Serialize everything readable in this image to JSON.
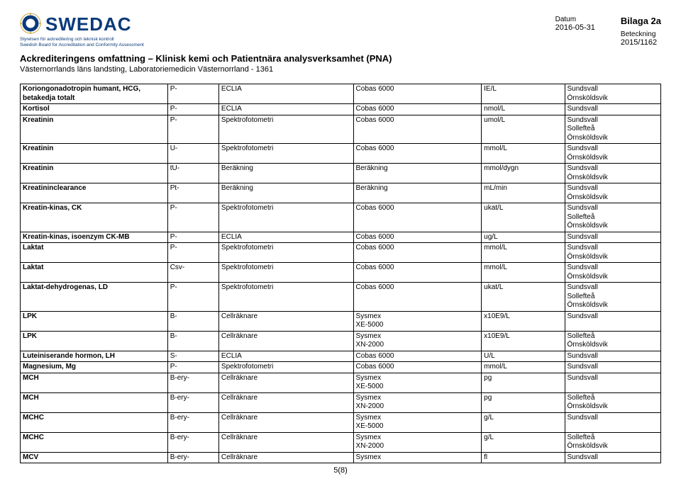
{
  "header": {
    "logo_text": "SWEDAC",
    "logo_tag1": "Styrelsen för ackreditering och teknisk kontroll",
    "logo_tag2": "Swedish Board for Accreditation and Conformity Assessment",
    "bilaga": "Bilaga 2a",
    "datum_label": "Datum",
    "datum_value": "2016-05-31",
    "beteckning_label": "Beteckning",
    "beteckning_value": "2015/1162"
  },
  "title": "Ackrediteringens omfattning – Klinisk kemi och Patientnära analysverksamhet (PNA)",
  "subtitle": "Västernorrlands läns landsting, Laboratoriemedicin Västernorrland - 1361",
  "page_num": "5(8)",
  "rows": [
    {
      "c0": "Koriongonadotropin humant, HCG, betakedja totalt",
      "c1": "P-",
      "c2": "ECLIA",
      "c3": "Cobas 6000",
      "c4": "IE/L",
      "c5": "Sundsvall\nÖrnsköldsvik"
    },
    {
      "c0": "Kortisol",
      "c1": "P-",
      "c2": "ECLIA",
      "c3": "Cobas 6000",
      "c4": "nmol/L",
      "c5": "Sundsvall"
    },
    {
      "c0": "Kreatinin",
      "c1": "P-",
      "c2": "Spektrofotometri",
      "c3": "Cobas 6000",
      "c4": "umol/L",
      "c5": "Sundsvall\nSollefteå\nÖrnsköldsvik"
    },
    {
      "c0": "Kreatinin",
      "c1": "U-",
      "c2": "Spektrofotometri",
      "c3": "Cobas 6000",
      "c4": "mmol/L",
      "c5": "Sundsvall\nÖrnsköldsvik"
    },
    {
      "c0": "Kreatinin",
      "c1": "tU-",
      "c2": "Beräkning",
      "c3": "Beräkning",
      "c4": "mmol/dygn",
      "c5": "Sundsvall\nÖrnsköldsvik"
    },
    {
      "c0": "Kreatininclearance",
      "c1": "Pt-",
      "c2": "Beräkning",
      "c3": "Beräkning",
      "c4": "mL/min",
      "c5": "Sundsvall\nÖrnsköldsvik"
    },
    {
      "c0": "Kreatin-kinas, CK",
      "c1": "P-",
      "c2": "Spektrofotometri",
      "c3": "Cobas 6000",
      "c4": "ukat/L",
      "c5": "Sundsvall\nSollefteå\nÖrnsköldsvik"
    },
    {
      "c0": "Kreatin-kinas, isoenzym CK-MB",
      "c1": "P-",
      "c2": "ECLIA",
      "c3": "Cobas 6000",
      "c4": "ug/L",
      "c5": "Sundsvall"
    },
    {
      "c0": "Laktat",
      "c1": "P-",
      "c2": "Spektrofotometri",
      "c3": "Cobas 6000",
      "c4": "mmol/L",
      "c5": "Sundsvall\nÖrnsköldsvik"
    },
    {
      "c0": "Laktat",
      "c1": "Csv-",
      "c2": "Spektrofotometri",
      "c3": "Cobas 6000",
      "c4": "mmol/L",
      "c5": "Sundsvall\nÖrnsköldsvik"
    },
    {
      "c0": "Laktat-dehydrogenas, LD",
      "c1": "P-",
      "c2": "Spektrofotometri",
      "c3": "Cobas 6000",
      "c4": "ukat/L",
      "c5": "Sundsvall\nSollefteå\nÖrnsköldsvik"
    },
    {
      "c0": "LPK",
      "c1": "B-",
      "c2": "Cellräknare",
      "c3": "Sysmex\nXE-5000",
      "c4": "x10E9/L",
      "c5": "Sundsvall"
    },
    {
      "c0": "LPK",
      "c1": "B-",
      "c2": "Cellräknare",
      "c3": "Sysmex\nXN-2000",
      "c4": "x10E9/L",
      "c5": "Sollefteå\nÖrnsköldsvik"
    },
    {
      "c0": "Luteiniserande hormon, LH",
      "c1": "S-",
      "c2": "ECLIA",
      "c3": "Cobas 6000",
      "c4": "U/L",
      "c5": "Sundsvall"
    },
    {
      "c0": "Magnesium, Mg",
      "c1": "P-",
      "c2": "Spektrofotometri",
      "c3": "Cobas 6000",
      "c4": "mmol/L",
      "c5": "Sundsvall"
    },
    {
      "c0": "MCH",
      "c1": "B-ery-",
      "c2": "Cellräknare",
      "c3": "Sysmex\nXE-5000",
      "c4": "pg",
      "c5": "Sundsvall"
    },
    {
      "c0": "MCH",
      "c1": "B-ery-",
      "c2": "Cellräknare",
      "c3": "Sysmex\nXN-2000",
      "c4": "pg",
      "c5": "Sollefteå\nÖrnsköldsvik"
    },
    {
      "c0": "MCHC",
      "c1": "B-ery-",
      "c2": "Cellräknare",
      "c3": "Sysmex\nXE-5000",
      "c4": "g/L",
      "c5": "Sundsvall"
    },
    {
      "c0": "MCHC",
      "c1": "B-ery-",
      "c2": "Cellräknare",
      "c3": "Sysmex\nXN-2000",
      "c4": "g/L",
      "c5": "Sollefteå\nÖrnsköldsvik"
    },
    {
      "c0": "MCV",
      "c1": "B-ery-",
      "c2": "Cellräknare",
      "c3": "Sysmex",
      "c4": "fl",
      "c5": "Sundsvall"
    }
  ],
  "logo_colors": {
    "blue": "#0b3a7a",
    "gold": "#c8a93b"
  }
}
